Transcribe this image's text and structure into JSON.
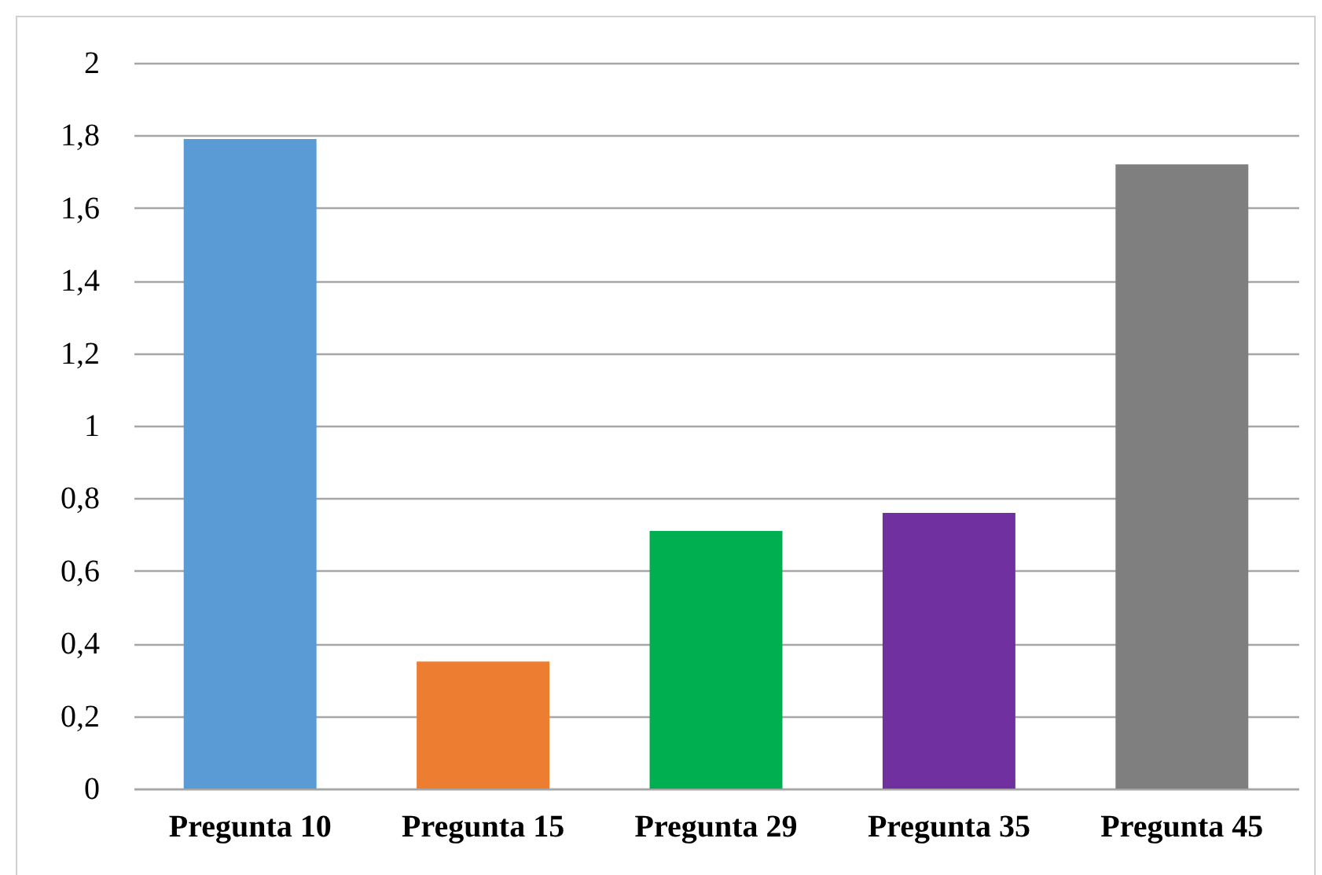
{
  "chart_data": {
    "type": "bar",
    "categories": [
      "Pregunta 10",
      "Pregunta 15",
      "Pregunta 29",
      "Pregunta 35",
      "Pregunta 45"
    ],
    "values": [
      1.79,
      0.35,
      0.71,
      0.76,
      1.72
    ],
    "colors": [
      "#5b9bd5",
      "#ed7d31",
      "#00b050",
      "#7030a0",
      "#7f7f7f"
    ],
    "ylim": [
      0,
      2
    ],
    "yticks": [
      0,
      {
        "value": 0.2,
        "label": "0,2"
      },
      {
        "value": 0.4,
        "label": "0,4"
      },
      {
        "value": 0.6,
        "label": "0,6"
      },
      {
        "value": 0.8,
        "label": "0,8"
      },
      1,
      {
        "value": 1.2,
        "label": "1,2"
      },
      {
        "value": 1.4,
        "label": "1,4"
      },
      {
        "value": 1.6,
        "label": "1,6"
      },
      {
        "value": 1.8,
        "label": "1,8"
      },
      2
    ],
    "grid": "y"
  }
}
